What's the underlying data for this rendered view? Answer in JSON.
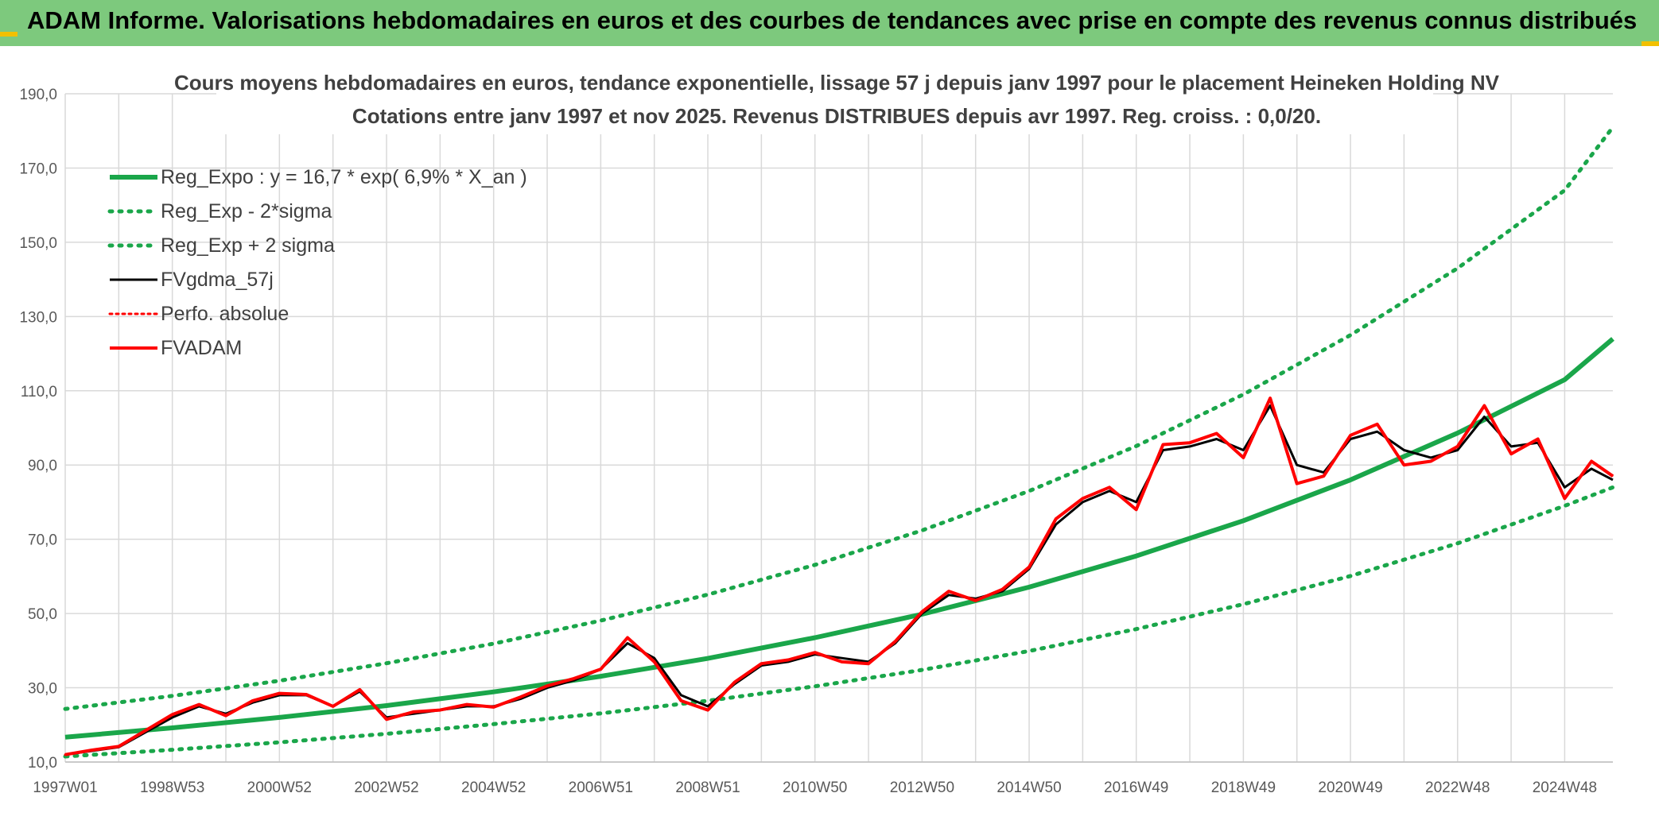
{
  "banner": {
    "title": "ADAM Informe. Valorisations hebdomadaires en euros et des courbes de tendances avec prise en compte des revenus connus distribués",
    "background": "#7dc97d"
  },
  "chart_data": {
    "type": "line",
    "title_line1": "Cours moyens hebdomadaires en euros, tendance exponentielle, lissage 57 j depuis janv 1997 pour le placement Heineken Holding NV",
    "title_line2": "Cotations entre janv 1997 et nov 2025. Revenus DISTRIBUES depuis avr 1997. Reg. croiss. : 0,0/20.",
    "ylim": [
      10,
      190
    ],
    "yticks": [
      "10,0",
      "30,0",
      "50,0",
      "70,0",
      "90,0",
      "110,0",
      "130,0",
      "150,0",
      "170,0",
      "190,0"
    ],
    "xlim": [
      1997.0,
      2025.9
    ],
    "xticks": [
      {
        "label": "1997W01",
        "x": 1997.0
      },
      {
        "label": "1998W53",
        "x": 1999.0
      },
      {
        "label": "2000W52",
        "x": 2001.0
      },
      {
        "label": "2002W52",
        "x": 2003.0
      },
      {
        "label": "2004W52",
        "x": 2005.0
      },
      {
        "label": "2006W51",
        "x": 2007.0
      },
      {
        "label": "2008W51",
        "x": 2009.0
      },
      {
        "label": "2010W50",
        "x": 2011.0
      },
      {
        "label": "2012W50",
        "x": 2013.0
      },
      {
        "label": "2014W50",
        "x": 2015.0
      },
      {
        "label": "2016W49",
        "x": 2017.0
      },
      {
        "label": "2018W49",
        "x": 2019.0
      },
      {
        "label": "2020W49",
        "x": 2021.0
      },
      {
        "label": "2022W48",
        "x": 2023.0
      },
      {
        "label": "2024W48",
        "x": 2025.0
      }
    ],
    "series": [
      {
        "name": "Reg_Expo : y = 16,7 * exp( 6,9% *  X_an )",
        "style": "solid-thick",
        "color": "#1aa64a",
        "x": [
          1997,
          1999,
          2001,
          2003,
          2005,
          2007,
          2009,
          2011,
          2013,
          2015,
          2017,
          2019,
          2021,
          2023,
          2025,
          2025.9
        ],
        "y": [
          16.7,
          19.2,
          22.0,
          25.2,
          28.9,
          33.1,
          37.9,
          43.5,
          49.8,
          57.1,
          65.5,
          75.0,
          86.0,
          98.6,
          113.0,
          124.0
        ]
      },
      {
        "name": "Reg_Exp - 2*sigma",
        "style": "dotted",
        "color": "#1aa64a",
        "x": [
          1997,
          1999,
          2001,
          2003,
          2005,
          2007,
          2009,
          2011,
          2013,
          2015,
          2017,
          2019,
          2021,
          2023,
          2025,
          2025.9
        ],
        "y": [
          11.5,
          13.3,
          15.3,
          17.6,
          20.2,
          23.1,
          26.5,
          30.4,
          34.8,
          39.9,
          45.8,
          52.5,
          60.1,
          68.9,
          79.0,
          84.0
        ]
      },
      {
        "name": "Reg_Exp + 2 sigma",
        "style": "dotted",
        "color": "#1aa64a",
        "x": [
          1997,
          1999,
          2001,
          2003,
          2005,
          2007,
          2009,
          2011,
          2013,
          2015,
          2017,
          2019,
          2021,
          2023,
          2025,
          2025.9
        ],
        "y": [
          24.3,
          27.8,
          31.9,
          36.6,
          41.9,
          48.1,
          55.1,
          63.1,
          72.4,
          83.0,
          95.1,
          109.0,
          125.0,
          143.0,
          164.0,
          181.0
        ]
      },
      {
        "name": "FVgdma_57j",
        "style": "solid",
        "color": "#000000",
        "x": [
          1997.0,
          1997.5,
          1998.0,
          1998.5,
          1999.0,
          1999.5,
          2000.0,
          2000.5,
          2001.0,
          2001.5,
          2002.0,
          2002.5,
          2003.0,
          2003.5,
          2004.0,
          2004.5,
          2005.0,
          2005.5,
          2006.0,
          2006.5,
          2007.0,
          2007.5,
          2008.0,
          2008.5,
          2009.0,
          2009.5,
          2010.0,
          2010.5,
          2011.0,
          2011.5,
          2012.0,
          2012.5,
          2013.0,
          2013.5,
          2014.0,
          2014.5,
          2015.0,
          2015.5,
          2016.0,
          2016.5,
          2017.0,
          2017.5,
          2018.0,
          2018.5,
          2019.0,
          2019.5,
          2020.0,
          2020.5,
          2021.0,
          2021.5,
          2022.0,
          2022.5,
          2023.0,
          2023.5,
          2024.0,
          2024.5,
          2025.0,
          2025.5,
          2025.9
        ],
        "y": [
          12.0,
          13.0,
          14.0,
          18.0,
          22.0,
          25.0,
          23.0,
          26.0,
          28.0,
          28.0,
          25.0,
          29.0,
          22.0,
          23.0,
          24.0,
          25.0,
          25.0,
          27.0,
          30.0,
          32.0,
          35.0,
          42.0,
          38.0,
          28.0,
          25.0,
          31.0,
          36.0,
          37.0,
          39.0,
          38.0,
          37.0,
          42.0,
          50.0,
          55.0,
          54.0,
          56.0,
          62.0,
          74.0,
          80.0,
          83.0,
          80.0,
          94.0,
          95.0,
          97.0,
          94.0,
          106.0,
          90.0,
          88.0,
          97.0,
          99.0,
          94.0,
          92.0,
          94.0,
          103.0,
          95.0,
          96.0,
          84.0,
          89.0,
          86.0
        ]
      },
      {
        "name": "Perfo. absolue",
        "style": "dotted",
        "color": "#ff0000",
        "x": [
          1997.0,
          1997.5,
          1998.0,
          1998.5,
          1999.0,
          1999.5,
          2000.0,
          2000.5,
          2001.0,
          2001.5,
          2002.0,
          2002.5,
          2003.0,
          2003.5,
          2004.0,
          2004.5,
          2005.0,
          2005.5,
          2006.0,
          2006.5,
          2007.0,
          2007.5,
          2008.0,
          2008.5,
          2009.0,
          2009.5,
          2010.0,
          2010.5,
          2011.0,
          2011.5,
          2012.0,
          2012.5,
          2013.0,
          2013.5,
          2014.0,
          2014.5,
          2015.0,
          2015.5,
          2016.0,
          2016.5,
          2017.0,
          2017.5,
          2018.0,
          2018.5,
          2019.0,
          2019.5,
          2020.0,
          2020.5,
          2021.0,
          2021.5,
          2022.0,
          2022.5,
          2023.0,
          2023.5,
          2024.0,
          2024.5,
          2025.0,
          2025.5,
          2025.9
        ],
        "y": [
          12.0,
          13.2,
          14.2,
          18.5,
          22.8,
          25.5,
          22.5,
          26.5,
          28.5,
          28.2,
          25.0,
          29.5,
          21.5,
          23.5,
          24.0,
          25.5,
          24.8,
          27.5,
          30.5,
          32.5,
          35.0,
          43.5,
          37.0,
          26.5,
          24.0,
          31.5,
          36.5,
          37.5,
          39.5,
          37.0,
          36.5,
          42.5,
          50.5,
          56.0,
          53.5,
          56.5,
          62.5,
          75.5,
          81.0,
          84.0,
          78.0,
          95.5,
          96.0,
          98.5,
          92.0,
          108.0,
          85.0,
          87.0,
          98.0,
          101.0,
          90.0,
          91.0,
          95.0,
          106.0,
          93.0,
          97.0,
          81.0,
          91.0,
          87.0
        ]
      },
      {
        "name": "FVADAM",
        "style": "solid-thick",
        "color": "#ff0000",
        "x": [
          1997.0,
          1997.5,
          1998.0,
          1998.5,
          1999.0,
          1999.5,
          2000.0,
          2000.5,
          2001.0,
          2001.5,
          2002.0,
          2002.5,
          2003.0,
          2003.5,
          2004.0,
          2004.5,
          2005.0,
          2005.5,
          2006.0,
          2006.5,
          2007.0,
          2007.5,
          2008.0,
          2008.5,
          2009.0,
          2009.5,
          2010.0,
          2010.5,
          2011.0,
          2011.5,
          2012.0,
          2012.5,
          2013.0,
          2013.5,
          2014.0,
          2014.5,
          2015.0,
          2015.5,
          2016.0,
          2016.5,
          2017.0,
          2017.5,
          2018.0,
          2018.5,
          2019.0,
          2019.5,
          2020.0,
          2020.5,
          2021.0,
          2021.5,
          2022.0,
          2022.5,
          2023.0,
          2023.5,
          2024.0,
          2024.5,
          2025.0,
          2025.5,
          2025.9
        ],
        "y": [
          12.0,
          13.2,
          14.2,
          18.5,
          22.8,
          25.5,
          22.5,
          26.5,
          28.5,
          28.2,
          25.0,
          29.5,
          21.5,
          23.5,
          24.0,
          25.5,
          24.8,
          27.5,
          30.5,
          32.5,
          35.0,
          43.5,
          37.0,
          26.5,
          24.0,
          31.5,
          36.5,
          37.5,
          39.5,
          37.0,
          36.5,
          42.5,
          50.5,
          56.0,
          53.5,
          56.5,
          62.5,
          75.5,
          81.0,
          84.0,
          78.0,
          95.5,
          96.0,
          98.5,
          92.0,
          108.0,
          85.0,
          87.0,
          98.0,
          101.0,
          90.0,
          91.0,
          95.0,
          106.0,
          93.0,
          97.0,
          81.0,
          91.0,
          87.0
        ]
      }
    ],
    "legend_position": "top-left",
    "grid": true
  }
}
